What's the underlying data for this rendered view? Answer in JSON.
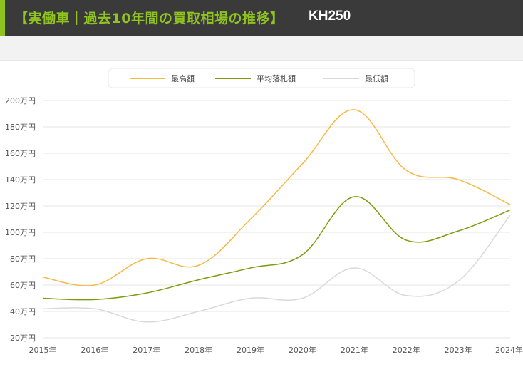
{
  "header": {
    "title": "【実働車｜過去10年間の買取相場の推移】",
    "model": "KH250",
    "accent_color": "#8fc31f",
    "background_color": "#3a3a3a"
  },
  "chart_data": {
    "type": "line",
    "title": "【実働車｜過去10年間の買取相場の推移】 KH250",
    "xlabel": "",
    "ylabel": "",
    "categories": [
      "2015年",
      "2016年",
      "2017年",
      "2018年",
      "2019年",
      "2020年",
      "2021年",
      "2022年",
      "2023年",
      "2024年"
    ],
    "x": [
      2015,
      2016,
      2017,
      2018,
      2019,
      2020,
      2021,
      2022,
      2023,
      2024
    ],
    "y_ticks": [
      20,
      40,
      60,
      80,
      100,
      120,
      140,
      160,
      180,
      200
    ],
    "y_tick_labels": [
      "20万円",
      "40万円",
      "60万円",
      "80万円",
      "100万円",
      "120万円",
      "140万円",
      "160万円",
      "180万円",
      "200万円"
    ],
    "ylim": [
      20,
      200
    ],
    "grid": true,
    "legend_position": "top-center",
    "series": [
      {
        "name": "最高額",
        "color": "#f5b945",
        "values": [
          66,
          60,
          80,
          75,
          110,
          152,
          193,
          147,
          140,
          121
        ]
      },
      {
        "name": "平均落札額",
        "color": "#7a9d0e",
        "values": [
          50,
          49,
          54,
          64,
          73,
          83,
          127,
          94,
          101,
          117
        ]
      },
      {
        "name": "最低額",
        "color": "#d9d9d9",
        "values": [
          42,
          42,
          32,
          40,
          50,
          50,
          73,
          52,
          63,
          113
        ]
      }
    ]
  }
}
